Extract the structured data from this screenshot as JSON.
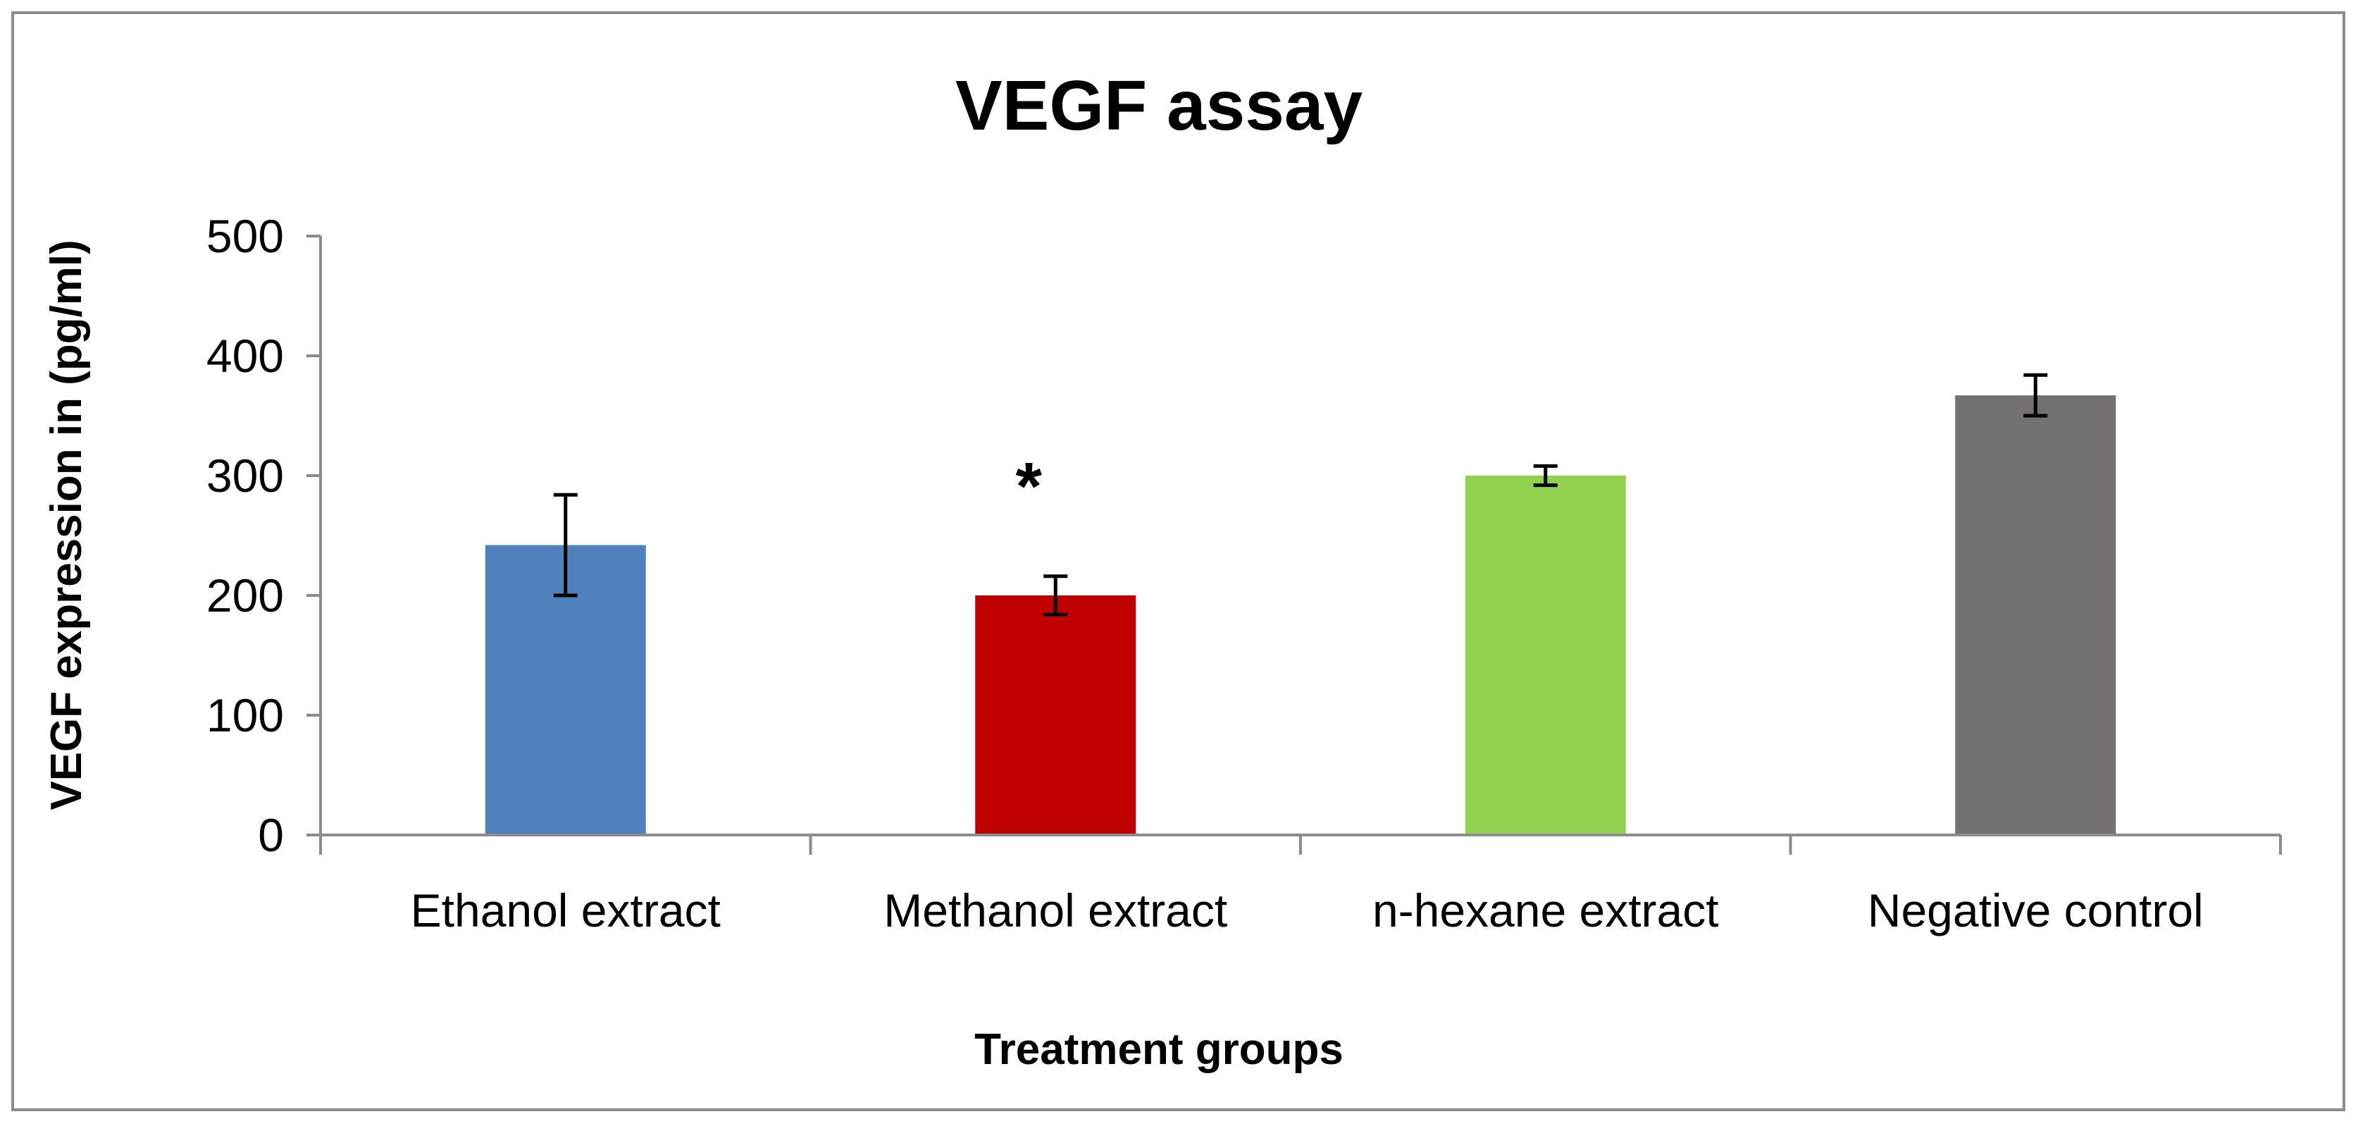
{
  "chart_data": {
    "type": "bar",
    "title": "VEGF assay",
    "xlabel": "Treatment groups",
    "ylabel": "VEGF expression in (pg/ml)",
    "ylim": [
      0,
      500
    ],
    "yticks": [
      0,
      100,
      200,
      300,
      400,
      500
    ],
    "yticks_labels": [
      "0",
      "100",
      "200",
      "300",
      "400",
      "500"
    ],
    "grid": false,
    "legend": "none",
    "categories": [
      "Ethanol extract",
      "Methanol extract",
      "n-hexane extract",
      "Negative control"
    ],
    "values": [
      242,
      200,
      300,
      367
    ],
    "errors": [
      42,
      16,
      8,
      17
    ],
    "colors": [
      "#4F81BD",
      "#C00000",
      "#92D050",
      "#767171"
    ],
    "annotations": [
      {
        "category": "Methanol extract",
        "text": "*",
        "y": 300
      }
    ]
  }
}
